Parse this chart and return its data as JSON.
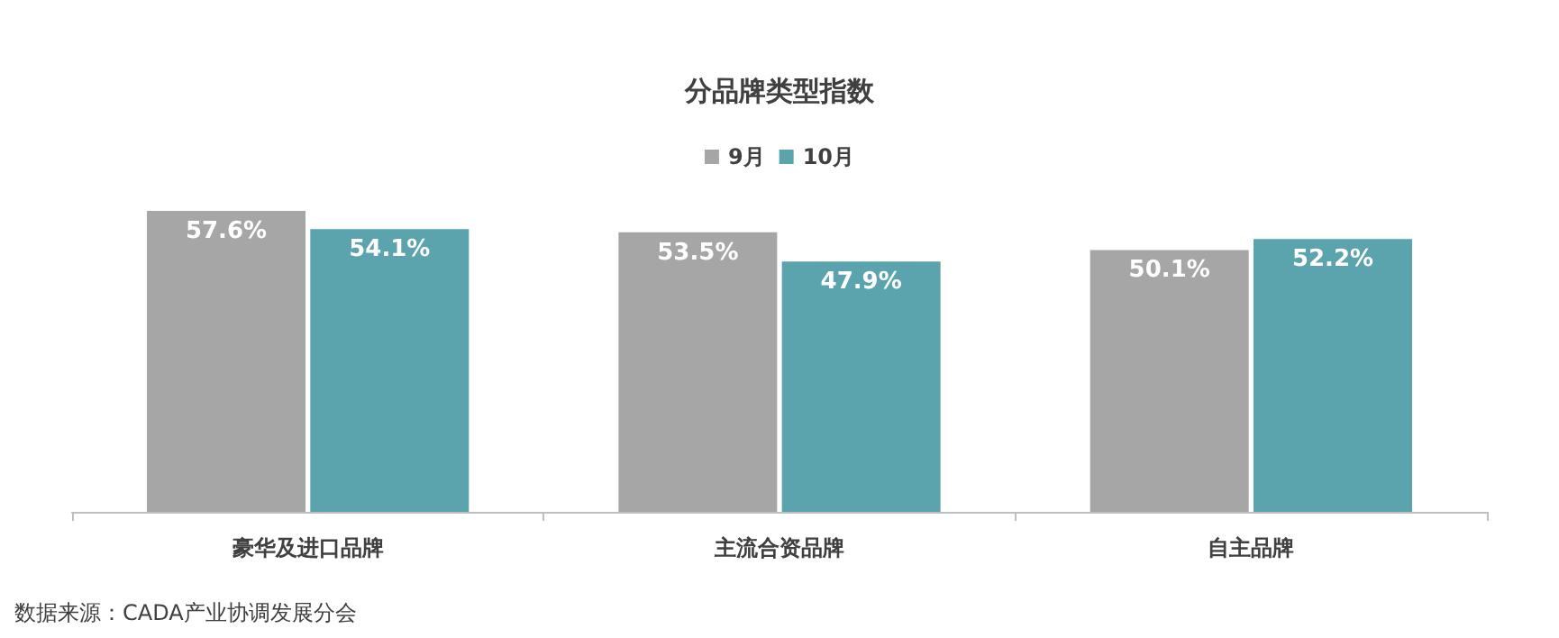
{
  "chart_data": {
    "type": "bar",
    "title": "分品牌类型指数",
    "categories": [
      "豪华及进口品牌",
      "主流合资品牌",
      "自主品牌"
    ],
    "series": [
      {
        "name": "9月",
        "color": "#a6a6a6",
        "values": [
          57.6,
          53.5,
          50.1
        ],
        "value_labels": [
          "57.6%",
          "53.5%",
          "50.1%"
        ]
      },
      {
        "name": "10月",
        "color": "#5ba3ad",
        "values": [
          54.1,
          47.9,
          52.2
        ],
        "value_labels": [
          "54.1%",
          "47.9%",
          "52.2%"
        ]
      }
    ],
    "legend": "top",
    "grid": false,
    "annotations": [
      "数据来源：CADA产业协调发展分会"
    ]
  }
}
